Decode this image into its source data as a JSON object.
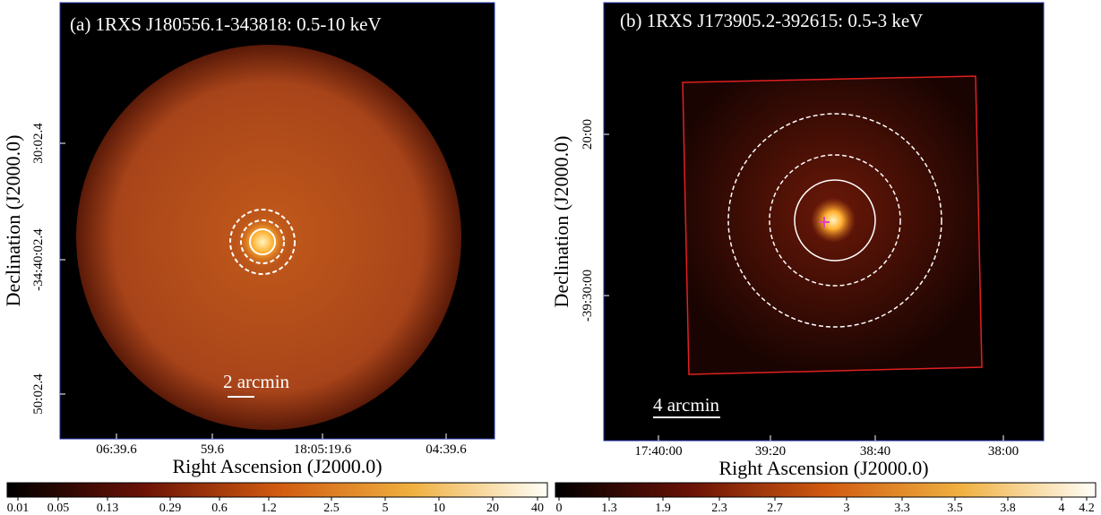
{
  "panels": [
    {
      "title": "(a) 1RXS J180556.1-343818: 0.5-10 keV",
      "xlabel": "Right Ascension (J2000.0)",
      "ylabel": "Declination (J2000.0)",
      "xticks": [
        "06:39.6",
        "59.6",
        "18:05:19.6",
        "04:39.6"
      ],
      "yticks": [
        "30:02.4",
        "-34:40:02.4",
        "50:02.4"
      ],
      "scale_bar": "2 arcmin",
      "colorbar": [
        "0.01",
        "0.05",
        "0.13",
        "0.29",
        "0.6",
        "1.2",
        "2.5",
        "5",
        "10",
        "20",
        "40"
      ]
    },
    {
      "title": "(b) 1RXS J173905.2-392615: 0.5-3 keV",
      "xlabel": "Right Ascension (J2000.0)",
      "ylabel": "Declination (J2000.0)",
      "xticks": [
        "17:40:00",
        "39:20",
        "38:40",
        "38:00"
      ],
      "yticks": [
        "20:00",
        "-39:30:00"
      ],
      "scale_bar": "4 arcmin",
      "colorbar": [
        "0",
        "1.3",
        "1.9",
        "2.3",
        "2.7",
        "3",
        "3.3",
        "3.5",
        "3.8",
        "4",
        "4.2"
      ]
    }
  ]
}
